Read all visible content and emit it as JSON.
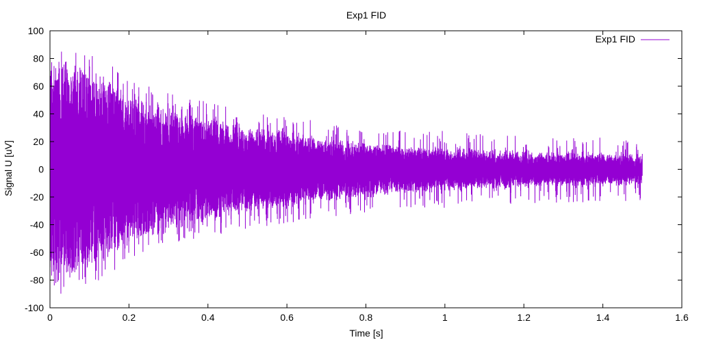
{
  "chart_data": {
    "type": "line",
    "title": "Exp1 FID",
    "xlabel": "Time [s]",
    "ylabel": "Signal U [uV]",
    "xlim": [
      0,
      1.6
    ],
    "ylim": [
      -100,
      100
    ],
    "xticks": [
      0,
      0.2,
      0.4,
      0.6,
      0.8,
      1,
      1.2,
      1.4,
      1.6
    ],
    "xtick_labels": [
      "0",
      "0.2",
      "0.4",
      "0.6",
      "0.8",
      "1",
      "1.2",
      "1.4",
      "1.6"
    ],
    "yticks": [
      -100,
      -80,
      -60,
      -40,
      -20,
      0,
      20,
      40,
      60,
      80,
      100
    ],
    "ytick_labels": [
      "-100",
      "-80",
      "-60",
      "-40",
      "-20",
      "0",
      "20",
      "40",
      "60",
      "80",
      "100"
    ],
    "legend_position": "top-right",
    "grid": false,
    "series": [
      {
        "name": "Exp1 FID",
        "color": "#9400d3",
        "x": [
          0,
          0.02,
          0.05,
          0.1,
          0.15,
          0.2,
          0.3,
          0.4,
          0.5,
          0.6,
          0.7,
          0.8,
          0.9,
          1.0,
          1.1,
          1.2,
          1.3,
          1.4,
          1.5
        ],
        "envelope": [
          72,
          78,
          75,
          70,
          62,
          52,
          42,
          35,
          29,
          25,
          21,
          18,
          15,
          14,
          12,
          11,
          10,
          10,
          9
        ],
        "range": [
          -90,
          92
        ]
      }
    ]
  }
}
